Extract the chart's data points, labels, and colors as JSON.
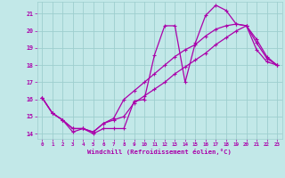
{
  "xlabel": "Windchill (Refroidissement éolien,°C)",
  "xlim": [
    -0.5,
    23.5
  ],
  "ylim": [
    13.7,
    21.7
  ],
  "xticks": [
    0,
    1,
    2,
    3,
    4,
    5,
    6,
    7,
    8,
    9,
    10,
    11,
    12,
    13,
    14,
    15,
    16,
    17,
    18,
    19,
    20,
    21,
    22,
    23
  ],
  "yticks": [
    14,
    15,
    16,
    17,
    18,
    19,
    20,
    21
  ],
  "bg_color": "#c2e8e8",
  "grid_color": "#9ecece",
  "line_color": "#aa00aa",
  "line1_x": [
    0,
    1,
    2,
    3,
    4,
    5,
    6,
    7,
    8,
    9,
    10,
    11,
    12,
    13,
    14,
    15,
    16,
    17,
    18,
    19,
    20,
    21,
    22,
    23
  ],
  "line1_y": [
    16.1,
    15.2,
    14.8,
    14.1,
    14.3,
    14.0,
    14.3,
    14.3,
    14.3,
    15.9,
    16.0,
    18.6,
    20.3,
    20.3,
    17.0,
    19.3,
    20.9,
    21.5,
    21.2,
    20.4,
    20.3,
    18.9,
    18.2,
    18.0
  ],
  "line2_x": [
    0,
    1,
    2,
    3,
    4,
    5,
    6,
    7,
    8,
    9,
    10,
    11,
    12,
    13,
    14,
    15,
    16,
    17,
    18,
    19,
    20,
    21,
    22,
    23
  ],
  "line2_y": [
    16.1,
    15.2,
    14.8,
    14.3,
    14.3,
    14.1,
    14.6,
    14.8,
    15.0,
    15.8,
    16.2,
    16.6,
    17.0,
    17.5,
    17.9,
    18.3,
    18.7,
    19.2,
    19.6,
    20.0,
    20.3,
    19.5,
    18.5,
    18.0
  ],
  "line3_x": [
    0,
    1,
    2,
    3,
    4,
    5,
    6,
    7,
    8,
    9,
    10,
    11,
    12,
    13,
    14,
    15,
    16,
    17,
    18,
    19,
    20,
    21,
    22,
    23
  ],
  "line3_y": [
    16.1,
    15.2,
    14.8,
    14.3,
    14.3,
    14.1,
    14.6,
    14.9,
    16.0,
    16.5,
    17.0,
    17.5,
    18.0,
    18.5,
    18.9,
    19.2,
    19.7,
    20.1,
    20.3,
    20.4,
    20.3,
    19.3,
    18.4,
    18.0
  ]
}
